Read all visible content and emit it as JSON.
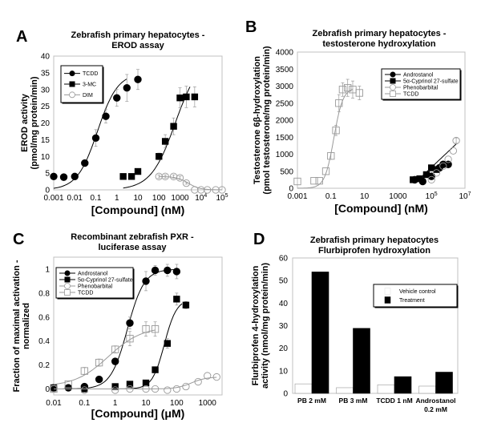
{
  "chart_data": [
    {
      "id": "A",
      "type": "scatter",
      "panel_label": "A",
      "title": [
        "Zebrafish primary hepatocytes -",
        "EROD assay"
      ],
      "xlabel": "[Compound] (nM)",
      "ylabel": [
        "EROD activity",
        "(pmol/mg protein/min)"
      ],
      "xscale": "log",
      "xlim": [
        0.001,
        100000
      ],
      "ylim": [
        0,
        40
      ],
      "yticks": [
        0,
        5,
        10,
        15,
        20,
        25,
        30,
        35,
        40
      ],
      "xticks": [
        {
          "v": 0.001,
          "label": "0.001"
        },
        {
          "v": 0.01,
          "label": "0.01"
        },
        {
          "v": 0.1,
          "label": "0.1"
        },
        {
          "v": 1,
          "label": "1"
        },
        {
          "v": 10,
          "label": "10"
        },
        {
          "v": 100,
          "label": "100"
        },
        {
          "v": 1000,
          "label": "1000"
        },
        {
          "v": 10000,
          "label": "10",
          "sup": "4"
        },
        {
          "v": 100000,
          "label": "10",
          "sup": "5"
        }
      ],
      "legend": {
        "position": "top-left"
      },
      "series": [
        {
          "name": "TCDD",
          "marker": "circle-filled",
          "color": "#000000",
          "x": [
            0.001,
            0.003,
            0.01,
            0.03,
            0.1,
            0.3,
            1,
            3,
            10
          ],
          "y": [
            4,
            3.8,
            4,
            8,
            15.5,
            22,
            27.5,
            30.5,
            33
          ],
          "err": [
            0,
            0,
            1,
            0,
            2.5,
            2,
            2.5,
            4,
            3
          ],
          "extra": {
            "x": [
              10
            ],
            "y": [
              33
            ]
          },
          "fit": {
            "bottom": 0,
            "top": 35,
            "ec50": 0.12,
            "hill": 0.9,
            "from": 0.001,
            "to": 3
          }
        },
        {
          "name": "3-MC",
          "marker": "square-filled",
          "color": "#000000",
          "x": [
            2,
            5,
            10,
            100,
            200,
            500,
            1000,
            2000,
            5000
          ],
          "y": [
            4,
            4,
            5.5,
            10,
            14.5,
            19,
            27.5,
            27.8,
            27.8
          ],
          "err": [
            0,
            0,
            0,
            1,
            2,
            2.5,
            3,
            3.2,
            3
          ],
          "fit": {
            "bottom": 0,
            "top": 40,
            "ec50": 600,
            "hill": 0.75,
            "from": 2,
            "to": 3000
          }
        },
        {
          "name": "DIM",
          "marker": "circle-open",
          "color": "#999999",
          "x": [
            100,
            200,
            500,
            1000,
            2000,
            5000,
            10000,
            20000,
            50000,
            100000
          ],
          "y": [
            4,
            4,
            4,
            3.6,
            2,
            0,
            0,
            0,
            0,
            0
          ],
          "err": [
            0.5,
            0.5,
            0.5,
            0.5,
            0.3,
            0,
            0,
            0,
            0,
            0
          ],
          "fit": {
            "bottom": 0,
            "top": 4,
            "ec50": 2500,
            "hill": -1.6,
            "from": 100,
            "to": 100000
          }
        }
      ]
    },
    {
      "id": "B",
      "type": "scatter",
      "panel_label": "B",
      "title": [
        "Zebrafish primary hepatocytes -",
        "testosterone hydroxylation"
      ],
      "xlabel": "[Compound] (nM)",
      "ylabel": [
        "Testosterone 6β-hydroxylation",
        "(pmol testosterone/mg protein/min)"
      ],
      "xscale": "log",
      "xlim": [
        0.001,
        10000000
      ],
      "ylim": [
        0,
        4000
      ],
      "yticks": [
        0,
        500,
        1000,
        1500,
        2000,
        2500,
        3000,
        3500,
        4000
      ],
      "xticks": [
        {
          "v": 0.001,
          "label": "0.001"
        },
        {
          "v": 0.1,
          "label": "0.1"
        },
        {
          "v": 10,
          "label": "10"
        },
        {
          "v": 1000,
          "label": "1000"
        },
        {
          "v": 100000,
          "label": "10",
          "sup": "5"
        },
        {
          "v": 10000000,
          "label": "10",
          "sup": "7"
        }
      ],
      "legend": {
        "position": "top-right"
      },
      "series": [
        {
          "name": "Androstanol",
          "marker": "circle-filled",
          "color": "#000000",
          "x": [
            10000,
            30000,
            100000,
            300000,
            500000,
            1000000
          ],
          "y": [
            250,
            200,
            350,
            600,
            700,
            700
          ],
          "err": [
            0,
            0,
            0,
            0,
            0,
            0
          ],
          "fit": {
            "linear_log": true,
            "from": 10000,
            "to": 3000000,
            "y0": 150,
            "y1": 1300
          }
        },
        {
          "name": "5α-Cyprinol 27-sulfate",
          "marker": "square-filled",
          "color": "#000000",
          "x": [
            8000,
            20000,
            50000,
            100000,
            200000
          ],
          "y": [
            250,
            280,
            400,
            600,
            550
          ],
          "err": [
            0,
            0,
            0,
            0,
            0
          ],
          "fit": null
        },
        {
          "name": "Phenobarbital",
          "marker": "circle-open",
          "color": "#999999",
          "x": [
            100000,
            200000,
            500000,
            1000000,
            2000000,
            3000000
          ],
          "y": [
            250,
            450,
            650,
            850,
            1100,
            1400
          ],
          "err": [
            0,
            0,
            0,
            0,
            0,
            80
          ],
          "fit": null
        },
        {
          "name": "TCDD",
          "marker": "square-open",
          "color": "#999999",
          "x": [
            0.001,
            0.01,
            0.02,
            0.05,
            0.1,
            0.2,
            0.3,
            0.5,
            1,
            2,
            5
          ],
          "y": [
            200,
            220,
            220,
            500,
            950,
            1700,
            2500,
            2900,
            2950,
            2900,
            2800
          ],
          "err": [
            0,
            0,
            0,
            0,
            100,
            150,
            250,
            200,
            250,
            250,
            200
          ],
          "fit": {
            "bottom": 0,
            "top": 2950,
            "ec50": 0.15,
            "hill": 1.6,
            "from": 0.001,
            "to": 2
          }
        }
      ]
    },
    {
      "id": "C",
      "type": "scatter",
      "panel_label": "C",
      "title": [
        "Recombinant zebrafish PXR -",
        "luciferase assay"
      ],
      "xlabel": "[Compound] (μM)",
      "ylabel": [
        "Fraction of maximal activation -",
        "normalized"
      ],
      "xscale": "log",
      "xlim": [
        0.01,
        3000
      ],
      "ylim": [
        -0.05,
        1.1
      ],
      "yticks": [
        0,
        0.2,
        0.4,
        0.6,
        0.8,
        1
      ],
      "xticks": [
        {
          "v": 0.01,
          "label": "0.01"
        },
        {
          "v": 0.1,
          "label": "0.1"
        },
        {
          "v": 1,
          "label": "1"
        },
        {
          "v": 10,
          "label": "10"
        },
        {
          "v": 100,
          "label": "100"
        },
        {
          "v": 1000,
          "label": "1000"
        }
      ],
      "legend": {
        "position": "top-left"
      },
      "series": [
        {
          "name": "Androstanol",
          "marker": "circle-filled",
          "color": "#000000",
          "x": [
            0.01,
            0.03,
            0.1,
            0.3,
            1,
            3,
            10,
            20,
            50,
            100
          ],
          "y": [
            0.01,
            0.01,
            0.02,
            0.08,
            0.23,
            0.55,
            0.9,
            0.99,
            0.99,
            0.98
          ],
          "err": [
            0,
            0,
            0,
            0,
            0,
            0.05,
            0.08,
            0.04,
            0.05,
            0.06
          ],
          "fit": {
            "bottom": 0,
            "top": 1.0,
            "ec50": 2.5,
            "hill": 1.6,
            "from": 0.01,
            "to": 100
          }
        },
        {
          "name": "5α-Cyprinol 27-sulfate",
          "marker": "square-filled",
          "color": "#000000",
          "x": [
            0.01,
            0.1,
            1,
            3,
            10,
            20,
            50,
            100,
            200
          ],
          "y": [
            0.01,
            0.0,
            0.02,
            0.04,
            0.05,
            0.16,
            0.38,
            0.75,
            0.7
          ],
          "err": [
            0,
            0,
            0,
            0,
            0,
            0,
            0.04,
            0.05,
            0.03
          ],
          "fit": {
            "bottom": 0,
            "top": 0.75,
            "ec50": 40,
            "hill": 2.2,
            "from": 0.01,
            "to": 150
          }
        },
        {
          "name": "Phenobarbital",
          "marker": "circle-open",
          "color": "#999999",
          "x": [
            0.01,
            0.1,
            1,
            3,
            10,
            20,
            50,
            100,
            200,
            500,
            1000,
            2000
          ],
          "y": [
            0,
            -0.01,
            -0.01,
            0,
            0,
            0,
            -0.01,
            0,
            0.02,
            0.06,
            0.11,
            0.1
          ],
          "err": [
            0,
            0,
            0,
            0,
            0,
            0,
            0,
            0,
            0,
            0,
            0,
            0
          ],
          "fit": {
            "bottom": 0,
            "top": 0.1,
            "ec50": 300,
            "hill": 1.8,
            "from": 0.01,
            "to": 2000
          }
        },
        {
          "name": "TCDD",
          "marker": "square-open",
          "color": "#999999",
          "x": [
            0.01,
            0.03,
            0.1,
            0.3,
            1,
            3,
            10,
            20
          ],
          "y": [
            0.0,
            0.04,
            0.15,
            0.22,
            0.33,
            0.42,
            0.5,
            0.5
          ],
          "err": [
            0,
            0,
            0.03,
            0.03,
            0.03,
            0.06,
            0.06,
            0.06
          ],
          "fit": {
            "bottom": 0.02,
            "top": 0.52,
            "ec50": 0.6,
            "hill": 0.8,
            "from": 0.01,
            "to": 20
          }
        }
      ]
    },
    {
      "id": "D",
      "type": "bar",
      "panel_label": "D",
      "title": [
        "Zebrafish primary hepatocytes",
        "Flurbiprofen hydroxylation"
      ],
      "xlabel": "",
      "ylabel": [
        "Flurbiprofen 4-hydroxylation",
        "activity (nmol/mg protein/min)"
      ],
      "ylim": [
        0,
        60
      ],
      "yticks": [
        0,
        10,
        20,
        30,
        40,
        50,
        60
      ],
      "categories": [
        [
          "PB 2 mM"
        ],
        [
          "PB 3 mM"
        ],
        [
          "TCDD 1 nM"
        ],
        [
          "Androstanol",
          "0.2 mM"
        ]
      ],
      "legend": {
        "position": "top-right"
      },
      "series": [
        {
          "name": "Vehicle control",
          "color": "#ffffff",
          "values": [
            4.2,
            2.5,
            3.8,
            3.2
          ]
        },
        {
          "name": "Treatment",
          "color": "#000000",
          "values": [
            53.8,
            28.8,
            7.4,
            9.4
          ]
        }
      ]
    }
  ]
}
